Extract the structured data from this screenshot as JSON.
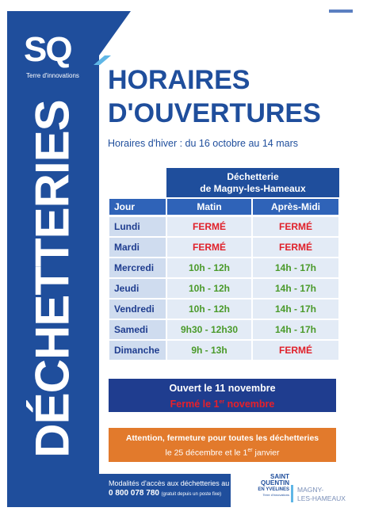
{
  "logo": {
    "mark": "SQ",
    "tagline": "Terre d'innovations"
  },
  "side_title": "DÉCHETTERIES",
  "title": [
    "HORAIRES",
    "D'OUVERTURES"
  ],
  "subtitle": "Horaires d'hiver : du 16 octobre au 14 mars",
  "table": {
    "group_header": [
      "Déchetterie",
      "de Magny-les-Hameaux"
    ],
    "columns": [
      "Jour",
      "Matin",
      "Après-Midi"
    ],
    "rows": [
      [
        "Lundi",
        "FERMÉ",
        "FERMÉ"
      ],
      [
        "Mardi",
        "FERMÉ",
        "FERMÉ"
      ],
      [
        "Mercredi",
        "10h - 12h",
        "14h - 17h"
      ],
      [
        "Jeudi",
        "10h - 12h",
        "14h - 17h"
      ],
      [
        "Vendredi",
        "10h - 12h",
        "14h - 17h"
      ],
      [
        "Samedi",
        "9h30 - 12h30",
        "14h - 17h"
      ],
      [
        "Dimanche",
        "9h - 13h",
        "FERMÉ"
      ]
    ]
  },
  "notice_holidays": {
    "open": "Ouvert le 11 novembre",
    "closed": [
      "Fermé le 1",
      "er",
      " novembre"
    ]
  },
  "notice_closure": {
    "line1": "Attention, fermeture pour toutes les déchetteries",
    "line2": [
      "le 25 décembre et le 1",
      "er",
      " janvier"
    ]
  },
  "footer": {
    "line1": "Modalités d'accès aux déchetteries au",
    "phone": "0 800 078 780",
    "note": "(gratuit depuis un poste fixe)"
  },
  "partner_logo": {
    "name": [
      "SAINT",
      "QUENTIN",
      "EN YVELINES"
    ],
    "tagline": "Terre d'innovations",
    "town": [
      "MAGNY-",
      "LES-HAMEAUX"
    ]
  }
}
